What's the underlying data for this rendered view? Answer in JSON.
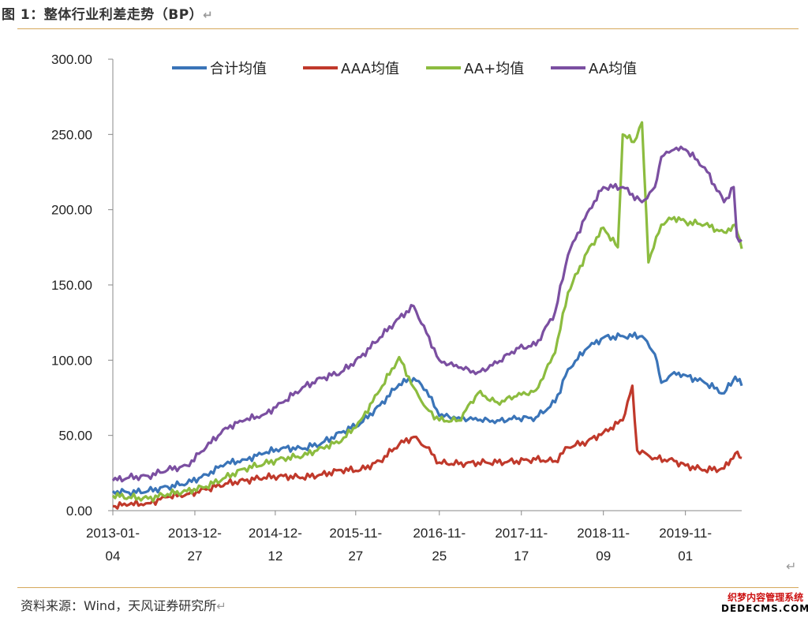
{
  "figure": {
    "title": "图 1：整体行业利差走势（BP）",
    "source": "资料来源：Wind，天风证券研究所",
    "return_mark": "↵",
    "watermark_line1": "织梦内容管理系统",
    "watermark_line2": "DEDECMS.COM"
  },
  "chart_data": {
    "type": "line",
    "title": "",
    "xlabel": "",
    "ylabel": "",
    "ylim": [
      0,
      300
    ],
    "y_ticks": [
      0,
      50,
      100,
      150,
      200,
      250,
      300
    ],
    "y_tick_labels": [
      "0.00",
      "50.00",
      "100.00",
      "150.00",
      "200.00",
      "250.00",
      "300.00"
    ],
    "x_tick_labels": [
      {
        "line1": "2013-01-",
        "line2": "04"
      },
      {
        "line1": "2013-12-",
        "line2": "27"
      },
      {
        "line1": "2014-12-",
        "line2": "12"
      },
      {
        "line1": "2015-11-",
        "line2": "27"
      },
      {
        "line1": "2016-11-",
        "line2": "25"
      },
      {
        "line1": "2017-11-",
        "line2": "17"
      },
      {
        "line1": "2018-11-",
        "line2": "09"
      },
      {
        "line1": "2019-11-",
        "line2": "01"
      }
    ],
    "x_tick_dates": [
      "2013-01-04",
      "2013-12-27",
      "2014-12-12",
      "2015-11-27",
      "2016-11-25",
      "2017-11-17",
      "2018-11-09",
      "2019-11-01"
    ],
    "x_range": [
      "2013-01-04",
      "2020-07-03"
    ],
    "grid": false,
    "legend_position": "top",
    "series": [
      {
        "name": "合计均值",
        "color": "#3a74b8",
        "points": [
          [
            "2013-01-04",
            13
          ],
          [
            "2013-03-15",
            12
          ],
          [
            "2013-06-07",
            13
          ],
          [
            "2013-08-30",
            16
          ],
          [
            "2013-11-22",
            18
          ],
          [
            "2014-02-14",
            24
          ],
          [
            "2014-05-09",
            31
          ],
          [
            "2014-08-01",
            34
          ],
          [
            "2014-10-24",
            38
          ],
          [
            "2015-01-16",
            42
          ],
          [
            "2015-04-10",
            41
          ],
          [
            "2015-07-03",
            45
          ],
          [
            "2015-09-25",
            52
          ],
          [
            "2015-12-18",
            58
          ],
          [
            "2016-03-11",
            70
          ],
          [
            "2016-06-03",
            84
          ],
          [
            "2016-08-05",
            88
          ],
          [
            "2016-09-30",
            80
          ],
          [
            "2016-11-25",
            63
          ],
          [
            "2017-02-17",
            62
          ],
          [
            "2017-05-12",
            60
          ],
          [
            "2017-08-04",
            60
          ],
          [
            "2017-10-27",
            61
          ],
          [
            "2018-01-19",
            62
          ],
          [
            "2018-04-13",
            72
          ],
          [
            "2018-06-08",
            94
          ],
          [
            "2018-08-31",
            108
          ],
          [
            "2018-11-09",
            115
          ],
          [
            "2019-02-01",
            116
          ],
          [
            "2019-04-26",
            116
          ],
          [
            "2019-06-21",
            104
          ],
          [
            "2019-07-19",
            85
          ],
          [
            "2019-09-13",
            92
          ],
          [
            "2019-11-01",
            90
          ],
          [
            "2020-01-24",
            85
          ],
          [
            "2020-04-17",
            78
          ],
          [
            "2020-06-05",
            89
          ],
          [
            "2020-07-03",
            83
          ]
        ]
      },
      {
        "name": "AAA均值",
        "color": "#c0392b",
        "points": [
          [
            "2013-01-04",
            3
          ],
          [
            "2013-03-15",
            4
          ],
          [
            "2013-06-07",
            5
          ],
          [
            "2013-08-30",
            9
          ],
          [
            "2013-11-22",
            11
          ],
          [
            "2014-02-14",
            14
          ],
          [
            "2014-05-09",
            18
          ],
          [
            "2014-08-01",
            20
          ],
          [
            "2014-10-24",
            22
          ],
          [
            "2015-01-16",
            23
          ],
          [
            "2015-04-10",
            22
          ],
          [
            "2015-07-03",
            24
          ],
          [
            "2015-09-25",
            27
          ],
          [
            "2015-12-18",
            27
          ],
          [
            "2016-03-11",
            33
          ],
          [
            "2016-06-03",
            44
          ],
          [
            "2016-08-05",
            49
          ],
          [
            "2016-09-30",
            42
          ],
          [
            "2016-11-25",
            32
          ],
          [
            "2017-02-17",
            31
          ],
          [
            "2017-05-12",
            32
          ],
          [
            "2017-08-04",
            32
          ],
          [
            "2017-10-27",
            33
          ],
          [
            "2018-01-19",
            34
          ],
          [
            "2018-04-13",
            33
          ],
          [
            "2018-06-08",
            42
          ],
          [
            "2018-08-31",
            46
          ],
          [
            "2018-11-09",
            52
          ],
          [
            "2019-02-01",
            60
          ],
          [
            "2019-03-15",
            83
          ],
          [
            "2019-04-05",
            40
          ],
          [
            "2019-06-21",
            35
          ],
          [
            "2019-09-13",
            33
          ],
          [
            "2019-11-01",
            30
          ],
          [
            "2020-01-24",
            27
          ],
          [
            "2020-04-17",
            28
          ],
          [
            "2020-06-05",
            38
          ],
          [
            "2020-07-03",
            35
          ]
        ]
      },
      {
        "name": "AA+均值",
        "color": "#8cbc3f",
        "points": [
          [
            "2013-01-04",
            10
          ],
          [
            "2013-03-15",
            9
          ],
          [
            "2013-06-07",
            8
          ],
          [
            "2013-08-30",
            11
          ],
          [
            "2013-11-22",
            13
          ],
          [
            "2014-02-14",
            16
          ],
          [
            "2014-05-09",
            22
          ],
          [
            "2014-08-01",
            28
          ],
          [
            "2014-10-24",
            31
          ],
          [
            "2015-01-16",
            35
          ],
          [
            "2015-04-10",
            36
          ],
          [
            "2015-07-03",
            42
          ],
          [
            "2015-09-25",
            46
          ],
          [
            "2015-12-18",
            60
          ],
          [
            "2016-03-11",
            80
          ],
          [
            "2016-06-03",
            102
          ],
          [
            "2016-08-05",
            82
          ],
          [
            "2016-09-30",
            68
          ],
          [
            "2016-11-25",
            60
          ],
          [
            "2017-02-17",
            60
          ],
          [
            "2017-05-12",
            78
          ],
          [
            "2017-08-04",
            72
          ],
          [
            "2017-10-27",
            76
          ],
          [
            "2018-01-19",
            80
          ],
          [
            "2018-04-13",
            105
          ],
          [
            "2018-06-08",
            145
          ],
          [
            "2018-08-31",
            172
          ],
          [
            "2018-11-09",
            188
          ],
          [
            "2019-01-11",
            175
          ],
          [
            "2019-02-01",
            250
          ],
          [
            "2019-03-22",
            245
          ],
          [
            "2019-04-26",
            258
          ],
          [
            "2019-05-24",
            165
          ],
          [
            "2019-07-19",
            190
          ],
          [
            "2019-09-13",
            195
          ],
          [
            "2019-11-01",
            192
          ],
          [
            "2020-01-24",
            190
          ],
          [
            "2020-04-17",
            185
          ],
          [
            "2020-06-05",
            190
          ],
          [
            "2020-07-03",
            174
          ]
        ]
      },
      {
        "name": "AA均值",
        "color": "#7b4fa1",
        "points": [
          [
            "2013-01-04",
            20
          ],
          [
            "2013-03-15",
            22
          ],
          [
            "2013-06-07",
            23
          ],
          [
            "2013-08-30",
            27
          ],
          [
            "2013-11-22",
            30
          ],
          [
            "2014-02-14",
            42
          ],
          [
            "2014-05-09",
            55
          ],
          [
            "2014-08-01",
            60
          ],
          [
            "2014-10-24",
            64
          ],
          [
            "2015-01-16",
            72
          ],
          [
            "2015-04-10",
            82
          ],
          [
            "2015-07-03",
            88
          ],
          [
            "2015-09-25",
            92
          ],
          [
            "2015-12-18",
            102
          ],
          [
            "2016-03-11",
            115
          ],
          [
            "2016-06-03",
            128
          ],
          [
            "2016-08-05",
            136
          ],
          [
            "2016-09-30",
            118
          ],
          [
            "2016-11-25",
            100
          ],
          [
            "2017-02-17",
            95
          ],
          [
            "2017-05-12",
            92
          ],
          [
            "2017-08-04",
            98
          ],
          [
            "2017-10-27",
            108
          ],
          [
            "2018-01-19",
            110
          ],
          [
            "2018-04-13",
            132
          ],
          [
            "2018-06-08",
            170
          ],
          [
            "2018-08-31",
            198
          ],
          [
            "2018-11-09",
            215
          ],
          [
            "2019-02-01",
            215
          ],
          [
            "2019-04-26",
            205
          ],
          [
            "2019-06-21",
            215
          ],
          [
            "2019-07-19",
            235
          ],
          [
            "2019-09-13",
            240
          ],
          [
            "2019-11-01",
            240
          ],
          [
            "2020-01-24",
            228
          ],
          [
            "2020-04-17",
            205
          ],
          [
            "2020-05-29",
            215
          ],
          [
            "2020-06-12",
            182
          ],
          [
            "2020-07-03",
            180
          ]
        ]
      }
    ]
  }
}
